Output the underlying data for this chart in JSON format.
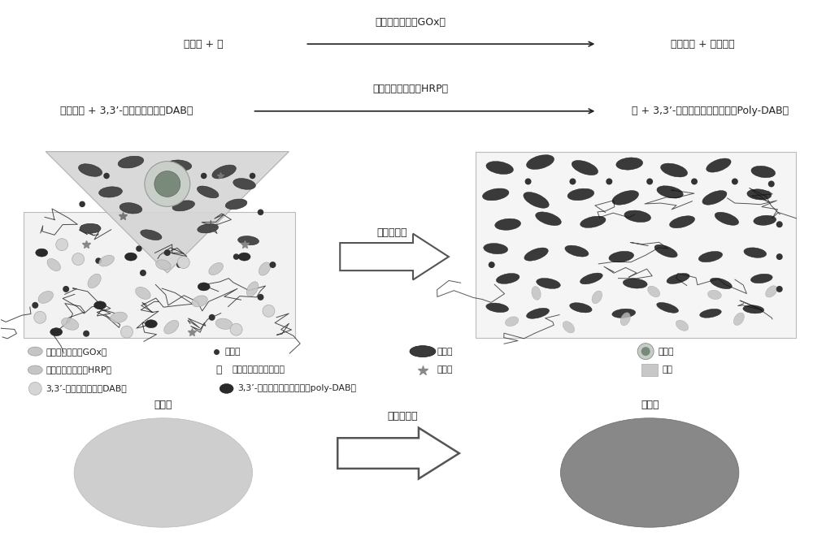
{
  "bg_color": "#ffffff",
  "reaction1_left": "葡萄糖 + 氧",
  "reaction1_catalyst": "葡萄糖氧化酶（GOx）",
  "reaction1_right": "葡萄糖酸 + 过氧化氢",
  "reaction2_left": "过氧化氢 + 3,3’-二氨基联苯胺（DAB）",
  "reaction2_catalyst": "辣根过氧化物酶（HRP）",
  "reaction2_right": "水 + 3,3’-二氨基联苯胺聚合物（Poly-DAB）",
  "arrow_label_mid": "过滤和反应",
  "arrow_label_bottom": "过滤和反应",
  "before_label": "反应前",
  "after_label": "反应后",
  "text_color": "#222222",
  "ellipse_before_color": "#cccccc",
  "ellipse_after_color": "#888888",
  "legend_gox": "葡萄糖氧化酶（GOx）",
  "legend_glucose": "葡萄糖",
  "legend_hrp": "辣根过氧化物酶（HRP）",
  "legend_chain": "聚乙二醇二丙烯酸酯链",
  "legend_dab": "3,3’-二氨基联苯胺（DAB）",
  "legend_pdab": "3,3’-二氨基联苯胺聚合物（poly-DAB）",
  "legend_rbc": "红细胞",
  "legend_wbc": "白细胞",
  "legend_platelet": "血小板",
  "legend_plasma": "血浆"
}
